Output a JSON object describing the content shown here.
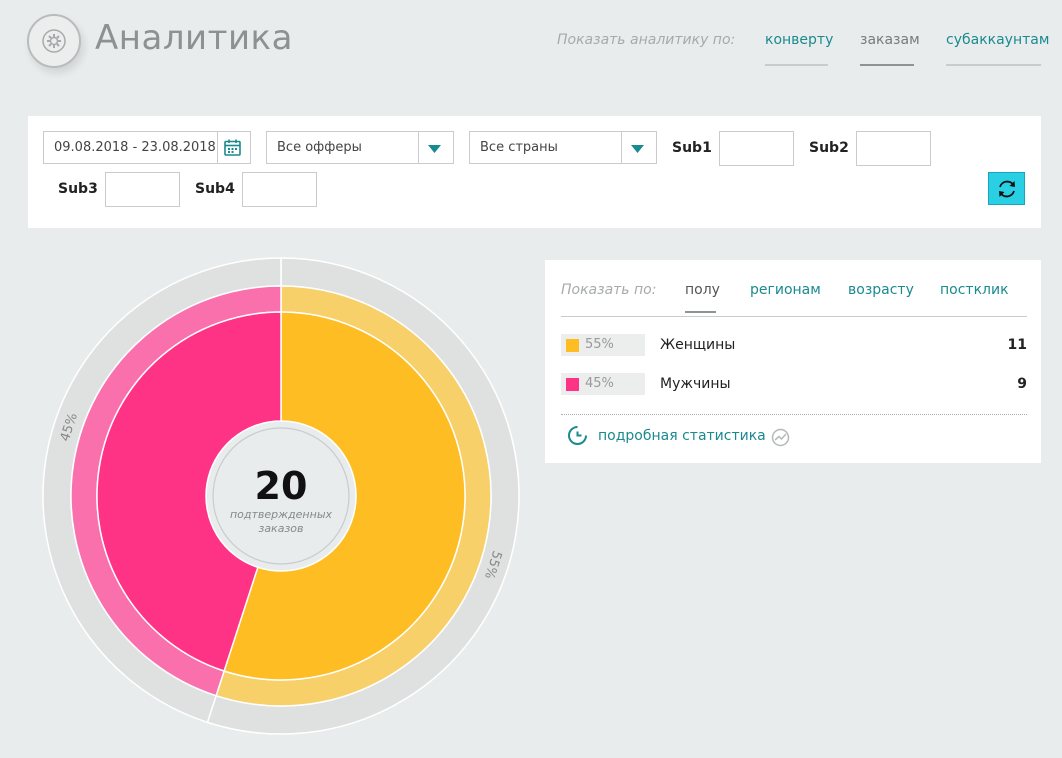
{
  "header": {
    "title": "Аналитика",
    "show_label": "Показать аналитику по:",
    "tabs": [
      {
        "label": "конверту",
        "active": false
      },
      {
        "label": "заказам",
        "active": true
      },
      {
        "label": "субаккаунтам",
        "active": false
      }
    ]
  },
  "filters": {
    "date_range": "09.08.2018 - 23.08.2018",
    "offers_selected": "Все офферы",
    "countries_selected": "Все страны",
    "sub_labels": [
      "Sub1",
      "Sub2",
      "Sub3",
      "Sub4"
    ],
    "sub_values": [
      "",
      "",
      "",
      ""
    ]
  },
  "summary": {
    "count": "20",
    "caption_line1": "подтвержденных",
    "caption_line2": "заказов"
  },
  "stats": {
    "show_label": "Показать по:",
    "tabs": [
      {
        "label": "полу",
        "active": true
      },
      {
        "label": "регионам",
        "active": false
      },
      {
        "label": "возрасту",
        "active": false
      },
      {
        "label": "постклик",
        "active": false
      }
    ],
    "rows": [
      {
        "percent": "55%",
        "name": "Женщины",
        "value": "11"
      },
      {
        "percent": "45%",
        "name": "Мужчины",
        "value": "9"
      }
    ],
    "detail_link": "подробная статистика"
  },
  "chart_data": {
    "type": "pie",
    "categories": [
      "Женщины",
      "Мужчины"
    ],
    "values": [
      11,
      9
    ],
    "outer_labels": [
      "55%",
      "45%"
    ],
    "colors": [
      "#fdbd23",
      "#ff3386"
    ]
  },
  "colors": {
    "accent": "#1a8a8f",
    "refresh_button": "#29cfe3",
    "women": "#fdbd23",
    "women_light": "#f8d06a",
    "men": "#ff3386",
    "men_light": "#f970ad",
    "track": "#dfe1e1"
  },
  "icons": {
    "logo": "gear-icon",
    "calendar": "calendar-icon",
    "dropdown": "triangle-down-icon",
    "refresh": "refresh-icon",
    "detail": "pie-chart-icon",
    "trend": "trend-icon"
  }
}
